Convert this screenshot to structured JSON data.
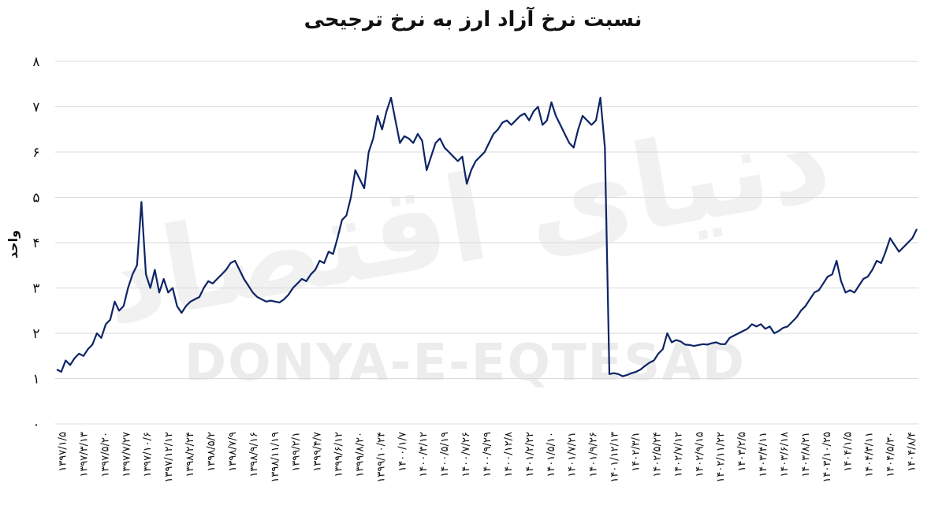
{
  "title": "نسبت نرخ آزاد ارز به نرخ ترجیحی",
  "watermark": {
    "fa": "دنیای اقتصاد",
    "en": "DONYA-E-EQTESAD"
  },
  "colors": {
    "line": "#0d2466",
    "grid": "#d9d9d9"
  },
  "chart_data": {
    "type": "line",
    "title": "نسبت نرخ آزاد ارز به نرخ ترجیحی",
    "ylabel": "واحد",
    "xlabel": "",
    "ylim": [
      0,
      8
    ],
    "y_ticks": [
      "۰",
      "۱",
      "۲",
      "۳",
      "۴",
      "۵",
      "۶",
      "۷",
      "۸"
    ],
    "grid": true,
    "x_tick_labels": [
      "۱۳۹۷/۱/۵",
      "۱۳۹۷/۳/۱۳",
      "۱۳۹۷/۵/۲۰",
      "۱۳۹۷/۷/۲۷",
      "۱۳۹۷/۱۰/۶",
      "۱۳۹۷/۱۲/۱۲",
      "۱۳۹۸/۲/۲۴",
      "۱۳۹۸/۵/۲",
      "۱۳۹۸/۷/۹",
      "۱۳۹۸/۹/۱۶",
      "۱۳۹۸/۱۱/۱۹",
      "۱۳۹۹/۲/۱",
      "۱۳۹۹/۴/۷",
      "۱۳۹۹/۶/۱۲",
      "۱۳۹۹/۸/۲۰",
      "۱۳۹۹/۱۰/۲۴",
      "۱۴۰۰/۱/۷",
      "۱۴۰۰/۳/۱۲",
      "۱۴۰۰/۵/۱۹",
      "۱۴۰۰/۷/۲۶",
      "۱۴۰۰/۹/۲۹",
      "۱۴۰۰/۱۲/۸",
      "۱۴۰۱/۲/۲۲",
      "۱۴۰۱/۵/۱۰",
      "۱۴۰۱/۷/۲۱",
      "۱۴۰۱/۹/۲۶",
      "۱۴۰۱/۱۲/۱۳",
      "۱۴۰۲/۳/۱",
      "۱۴۰۲/۵/۲۴",
      "۱۴۰۲/۷/۱۲",
      "۱۴۰۲/۹/۱۵",
      "۱۴۰۲/۱۱/۲۲",
      "۱۴۰۳/۲/۵",
      "۱۴۰۳/۴/۱۱",
      "۱۴۰۳/۶/۱۸",
      "۱۴۰۳/۸/۲۱",
      "۱۴۰۳/۱۰/۲۵",
      "۱۴۰۴/۱/۵",
      "۱۴۰۴/۳/۱۱",
      "۱۴۰۴/۵/۳۰",
      "۱۴۰۴/۸/۴"
    ],
    "series": [
      {
        "values": [
          1.2,
          1.15,
          1.4,
          1.3,
          1.45,
          1.55,
          1.5,
          1.65,
          1.75,
          2.0,
          1.9,
          2.2,
          2.3,
          2.7,
          2.5,
          2.6,
          3.0,
          3.3,
          3.5,
          4.9,
          3.3,
          3.0,
          3.4,
          2.9,
          3.2,
          2.9,
          3.0,
          2.6,
          2.45,
          2.6,
          2.7,
          2.75,
          2.8,
          3.0,
          3.15,
          3.1,
          3.2,
          3.3,
          3.4,
          3.55,
          3.6,
          3.4,
          3.2,
          3.05,
          2.9,
          2.8,
          2.75,
          2.7,
          2.72,
          2.7,
          2.68,
          2.75,
          2.85,
          3.0,
          3.1,
          3.2,
          3.15,
          3.3,
          3.4,
          3.6,
          3.55,
          3.8,
          3.75,
          4.1,
          4.5,
          4.6,
          5.0,
          5.6,
          5.4,
          5.2,
          6.0,
          6.3,
          6.8,
          6.5,
          6.9,
          7.2,
          6.7,
          6.2,
          6.35,
          6.3,
          6.2,
          6.4,
          6.25,
          5.6,
          5.9,
          6.2,
          6.3,
          6.1,
          6.0,
          5.9,
          5.8,
          5.9,
          5.3,
          5.6,
          5.8,
          5.9,
          6.0,
          6.2,
          6.4,
          6.5,
          6.65,
          6.7,
          6.6,
          6.7,
          6.8,
          6.85,
          6.7,
          6.9,
          7.0,
          6.6,
          6.7,
          7.1,
          6.8,
          6.6,
          6.4,
          6.2,
          6.1,
          6.5,
          6.8,
          6.7,
          6.6,
          6.7,
          7.2,
          6.1,
          1.1,
          1.12,
          1.1,
          1.05,
          1.08,
          1.12,
          1.15,
          1.2,
          1.28,
          1.35,
          1.4,
          1.55,
          1.65,
          2.0,
          1.8,
          1.85,
          1.82,
          1.75,
          1.74,
          1.72,
          1.74,
          1.76,
          1.75,
          1.78,
          1.8,
          1.76,
          1.76,
          1.9,
          1.95,
          2.0,
          2.05,
          2.1,
          2.2,
          2.15,
          2.2,
          2.1,
          2.15,
          2.0,
          2.05,
          2.12,
          2.15,
          2.25,
          2.35,
          2.5,
          2.6,
          2.75,
          2.9,
          2.95,
          3.1,
          3.25,
          3.3,
          3.6,
          3.15,
          2.9,
          2.95,
          2.9,
          3.05,
          3.2,
          3.25,
          3.4,
          3.6,
          3.55,
          3.8,
          4.1,
          3.95,
          3.8,
          3.9,
          4.0,
          4.1,
          4.3
        ]
      }
    ]
  }
}
